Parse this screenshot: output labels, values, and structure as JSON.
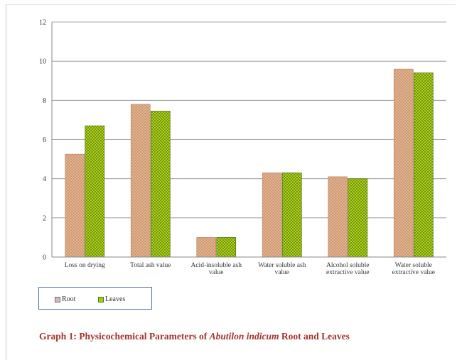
{
  "chart_data": {
    "type": "bar",
    "categories": [
      [
        "Loss on drying"
      ],
      [
        "Total ash value"
      ],
      [
        "Acid-insoluble ash",
        "value"
      ],
      [
        "Water soluble ash",
        "value"
      ],
      [
        "Alcohol soluble",
        "extractive value"
      ],
      [
        "Water soluble",
        "extractive value"
      ]
    ],
    "series": [
      {
        "name": "Root",
        "values": [
          5.25,
          7.8,
          1.0,
          4.3,
          4.1,
          9.6
        ],
        "color": "#e0b48e"
      },
      {
        "name": "Leaves",
        "values": [
          6.7,
          7.45,
          1.0,
          4.3,
          4.0,
          9.4
        ],
        "color": "#a8c81e"
      }
    ],
    "yticks": [
      0,
      2,
      4,
      6,
      8,
      10,
      12
    ],
    "ylim": [
      0,
      12
    ],
    "grid": true,
    "legend_position": "bottom-left"
  },
  "caption": {
    "prefix": "Graph 1:  Physicochemical Parameters of ",
    "italic": "Abutilon indicum",
    "suffix": " Root and Leaves"
  }
}
